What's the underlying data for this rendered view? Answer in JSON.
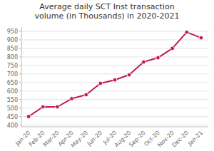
{
  "chart_data": {
    "type": "line",
    "title": "Average daily SCT Inst transaction\nvolume (in Thousands) in 2020-2021",
    "categories": [
      "Jan-20",
      "Feb-20",
      "Mar-20",
      "Apr-20",
      "May-20",
      "Jun-20",
      "Jul-20",
      "Aug-20",
      "Sep-20",
      "Oct-20",
      "Nov-20",
      "Dec-20",
      "Jan-21"
    ],
    "values": [
      450,
      507,
      507,
      555,
      578,
      645,
      665,
      695,
      770,
      795,
      850,
      945,
      912
    ],
    "color": "#C2185B",
    "marker": "circle",
    "ylim": [
      390,
      975
    ],
    "yticks": [
      400,
      450,
      500,
      550,
      600,
      650,
      700,
      750,
      800,
      850,
      900,
      950
    ],
    "grid": true
  }
}
